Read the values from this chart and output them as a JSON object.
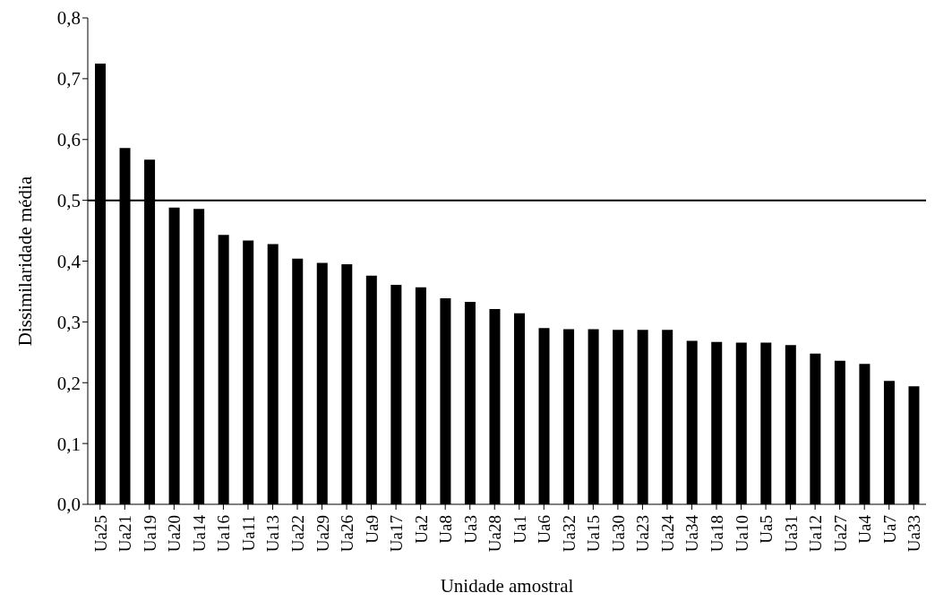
{
  "chart_data": {
    "type": "bar",
    "xlabel": "Unidade amostral",
    "ylabel": "Dissimilaridade  média",
    "categories": [
      "Ua25",
      "Ua21",
      "Ua19",
      "Ua20",
      "Ua14",
      "Ua16",
      "Ua11",
      "Ua13",
      "Ua22",
      "Ua29",
      "Ua26",
      "Ua9",
      "Ua17",
      "Ua2",
      "Ua8",
      "Ua3",
      "Ua28",
      "Ua1",
      "Ua6",
      "Ua32",
      "Ua15",
      "Ua30",
      "Ua23",
      "Ua24",
      "Ua34",
      "Ua18",
      "Ua10",
      "Ua5",
      "Ua31",
      "Ua12",
      "Ua27",
      "Ua4",
      "Ua7",
      "Ua33"
    ],
    "values": [
      0.725,
      0.586,
      0.567,
      0.488,
      0.486,
      0.443,
      0.434,
      0.428,
      0.404,
      0.397,
      0.395,
      0.376,
      0.361,
      0.357,
      0.339,
      0.333,
      0.321,
      0.314,
      0.29,
      0.288,
      0.288,
      0.287,
      0.287,
      0.287,
      0.269,
      0.267,
      0.266,
      0.266,
      0.262,
      0.248,
      0.236,
      0.231,
      0.203,
      0.194
    ],
    "color": "#000000",
    "ylim": [
      0,
      0.8
    ],
    "yticks": [
      {
        "value": 0,
        "label": "0,0"
      },
      {
        "value": 0.1,
        "label": "0,1"
      },
      {
        "value": 0.2,
        "label": "0,2"
      },
      {
        "value": 0.3,
        "label": "0,3"
      },
      {
        "value": 0.4,
        "label": "0,4"
      },
      {
        "value": 0.5,
        "label": "0,5"
      },
      {
        "value": 0.6,
        "label": "0,6"
      },
      {
        "value": 0.7,
        "label": "0,7"
      },
      {
        "value": 0.8,
        "label": "0,8"
      }
    ],
    "ref_lines": [
      {
        "axis": "y",
        "value": 0.5,
        "color": "#000000"
      }
    ],
    "grid": false,
    "legend": false
  }
}
